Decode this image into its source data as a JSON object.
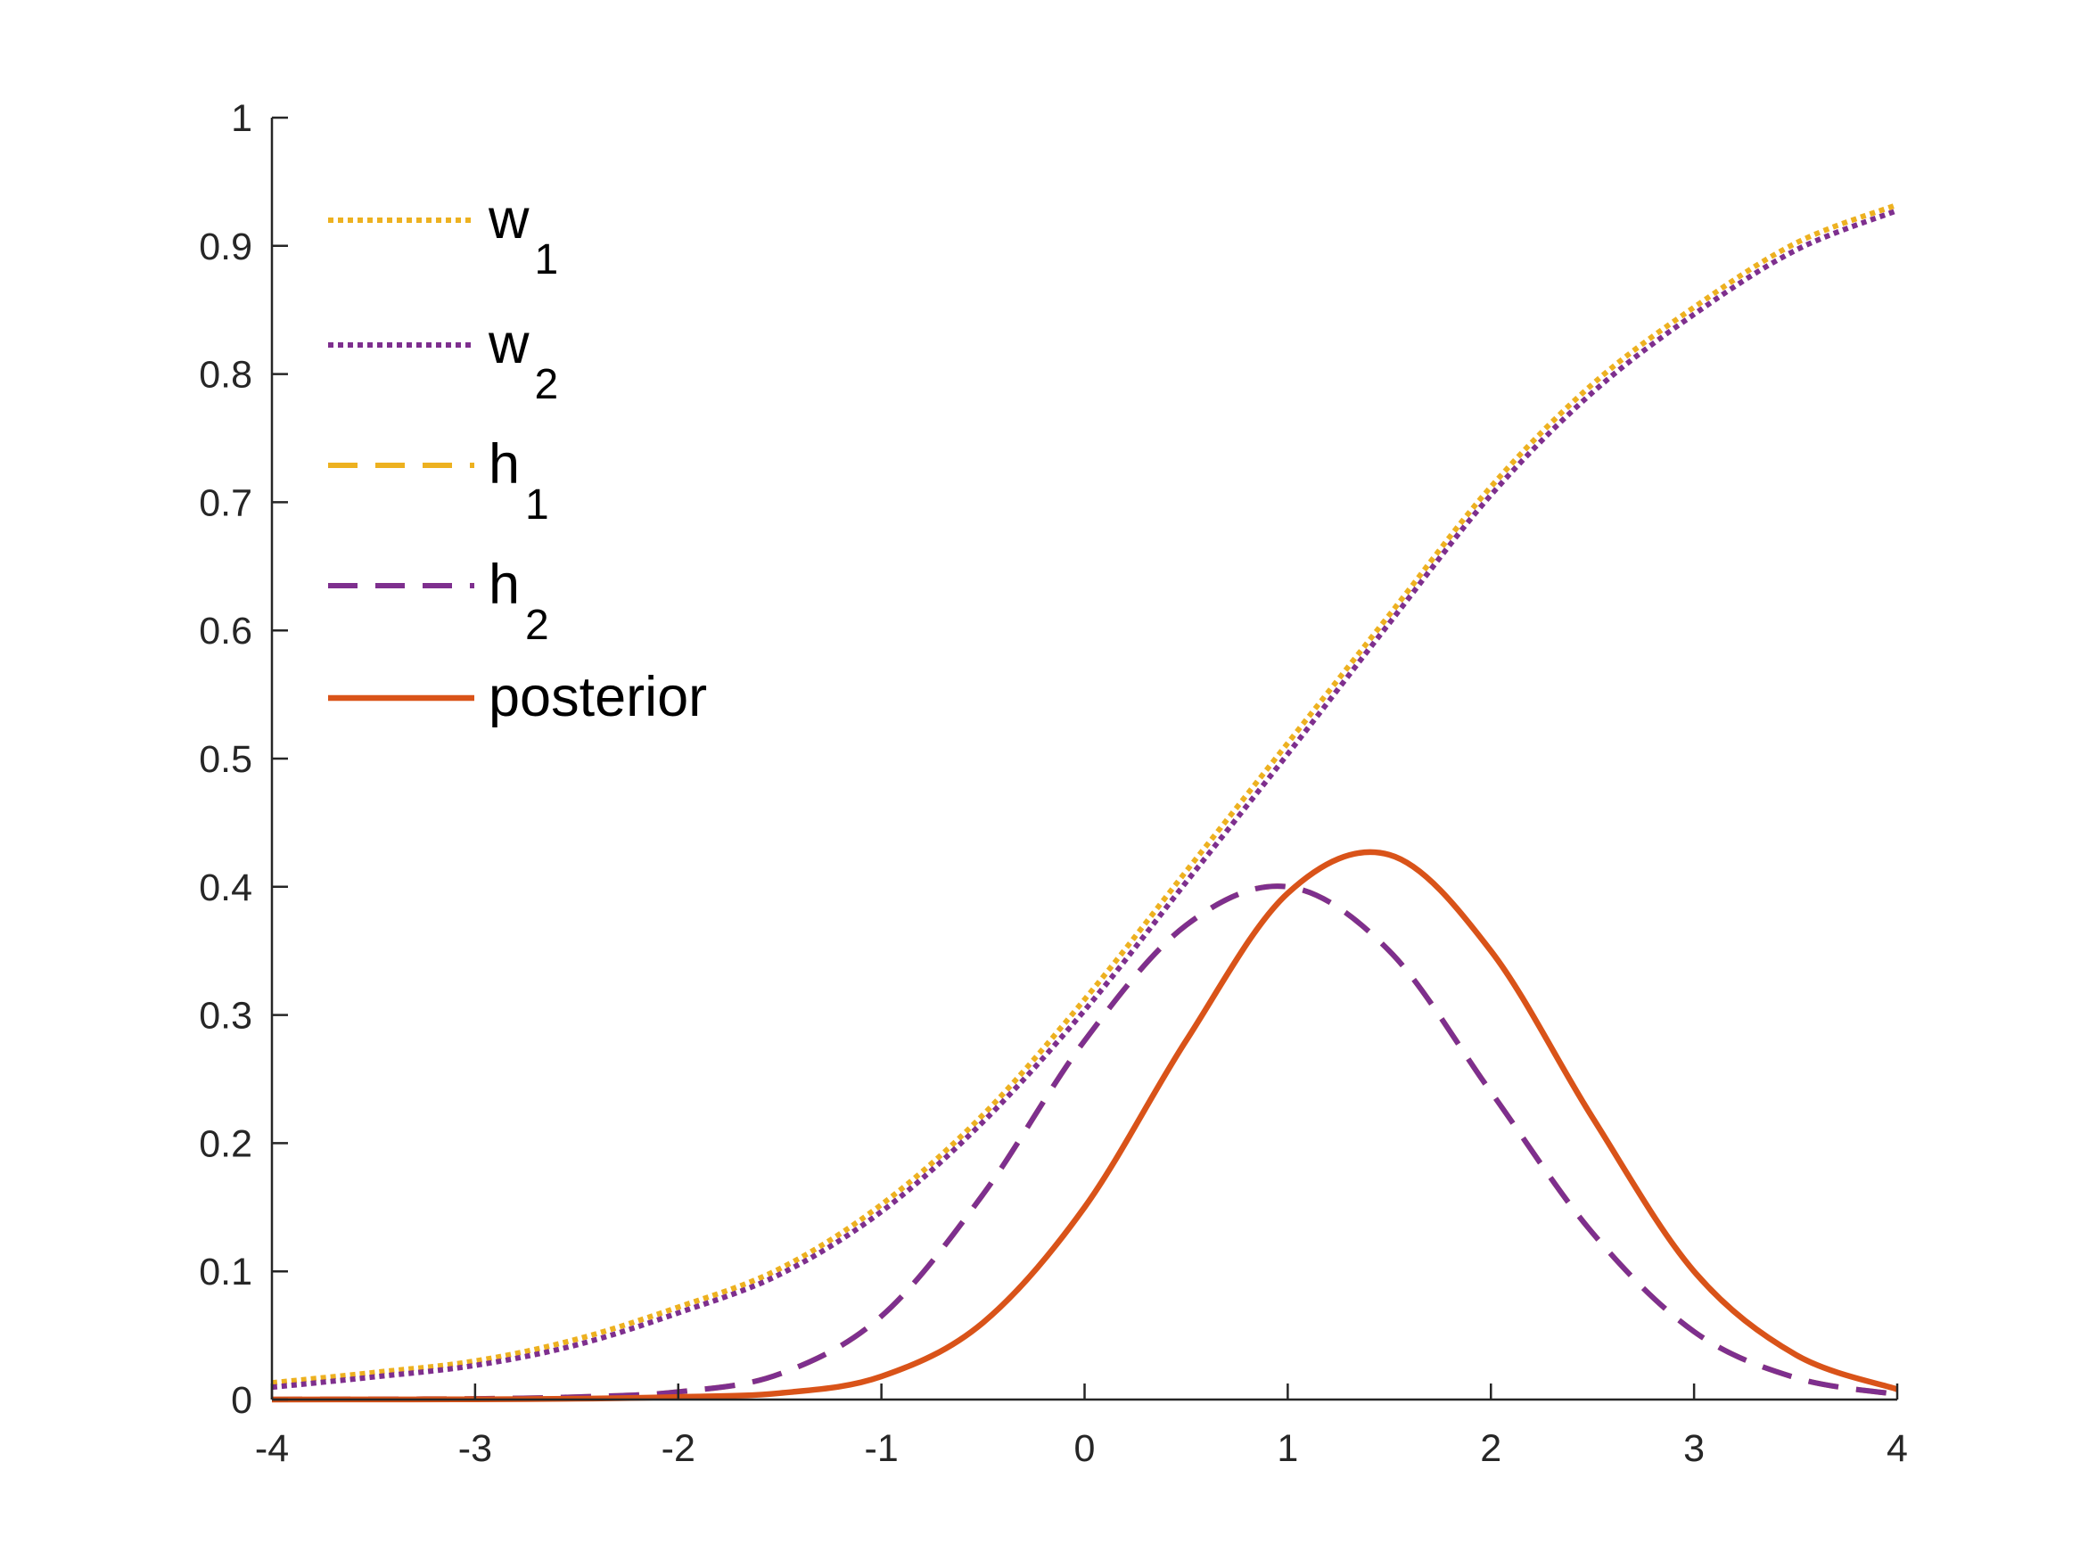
{
  "chart_data": {
    "type": "line",
    "title": "",
    "xlabel": "",
    "ylabel": "",
    "xlim": [
      -4,
      4
    ],
    "ylim": [
      0,
      1
    ],
    "x_ticks": [
      -4,
      -3,
      -2,
      -1,
      0,
      1,
      2,
      3,
      4
    ],
    "x_tick_labels": [
      "-4",
      "-3",
      "-2",
      "-1",
      "0",
      "1",
      "2",
      "3",
      "4"
    ],
    "y_ticks": [
      0,
      0.1,
      0.2,
      0.3,
      0.4,
      0.5,
      0.6,
      0.7,
      0.8,
      0.9,
      1
    ],
    "y_tick_labels": [
      "0",
      "0.1",
      "0.2",
      "0.3",
      "0.4",
      "0.5",
      "0.6",
      "0.7",
      "0.8",
      "0.9",
      "1"
    ],
    "grid": false,
    "legend_position": "top-left",
    "x": [
      -4,
      -3.5,
      -3,
      -2.5,
      -2,
      -1.5,
      -1,
      -0.5,
      0,
      0.5,
      1,
      1.5,
      2,
      2.5,
      3,
      3.5,
      4
    ],
    "series": [
      {
        "name": "w",
        "subscript": "1",
        "style": "dotted",
        "color": "#EDB120",
        "values": [
          0.011,
          0.019,
          0.028,
          0.045,
          0.07,
          0.1,
          0.15,
          0.22,
          0.31,
          0.41,
          0.51,
          0.61,
          0.71,
          0.79,
          0.85,
          0.9,
          0.93
        ]
      },
      {
        "name": "w",
        "subscript": "2",
        "style": "dotted",
        "color": "#7E2F8E",
        "values": [
          0.011,
          0.019,
          0.028,
          0.044,
          0.069,
          0.099,
          0.148,
          0.218,
          0.305,
          0.405,
          0.505,
          0.607,
          0.707,
          0.787,
          0.848,
          0.898,
          0.929
        ]
      },
      {
        "name": "h",
        "subscript": "1",
        "style": "dashed",
        "color": "#EDB120",
        "values": [
          0.0001,
          0.0003,
          0.0006,
          0.002,
          0.006,
          0.02,
          0.065,
          0.16,
          0.28,
          0.37,
          0.4,
          0.35,
          0.24,
          0.13,
          0.053,
          0.017,
          0.004
        ]
      },
      {
        "name": "h",
        "subscript": "2",
        "style": "dashed",
        "color": "#7E2F8E",
        "values": [
          0.0001,
          0.0003,
          0.0006,
          0.002,
          0.006,
          0.02,
          0.065,
          0.16,
          0.28,
          0.37,
          0.4,
          0.35,
          0.24,
          0.13,
          0.053,
          0.017,
          0.004
        ]
      },
      {
        "name": "posterior",
        "subscript": "",
        "style": "solid",
        "color": "#D95319",
        "values": [
          0.0,
          0.0001,
          0.0002,
          0.0007,
          0.002,
          0.005,
          0.018,
          0.06,
          0.15,
          0.28,
          0.395,
          0.425,
          0.35,
          0.22,
          0.1,
          0.035,
          0.008
        ]
      }
    ]
  }
}
